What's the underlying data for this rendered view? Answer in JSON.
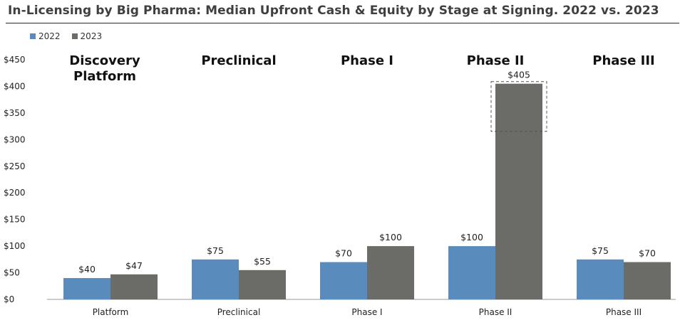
{
  "chart_data": {
    "type": "bar",
    "title": "In-Licensing by Big Pharma: Median Upfront Cash & Equity by Stage at Signing. 2022 vs. 2023",
    "categories": [
      "Platform",
      "Preclinical",
      "Phase I",
      "Phase II",
      "Phase III"
    ],
    "group_headings": [
      [
        "Discovery",
        "Platform"
      ],
      [
        "Preclinical"
      ],
      [
        "Phase I"
      ],
      [
        "Phase II"
      ],
      [
        "Phase III"
      ]
    ],
    "series": [
      {
        "name": "2022",
        "color": "#5a8bbd",
        "values": [
          40,
          75,
          70,
          100,
          75
        ],
        "labels": [
          "$40",
          "$75",
          "$70",
          "$100",
          "$75"
        ]
      },
      {
        "name": "2023",
        "color": "#6b6b68",
        "values": [
          47,
          55,
          100,
          405,
          70
        ],
        "labels": [
          "$47",
          "$55",
          "$100",
          "$405",
          "$70"
        ]
      }
    ],
    "ylim": [
      0,
      450
    ],
    "yticks": [
      0,
      50,
      100,
      150,
      200,
      250,
      300,
      350,
      400,
      450
    ],
    "ytick_labels": [
      "$0",
      "$50",
      "$100",
      "$150",
      "$200",
      "$250",
      "$300",
      "$350",
      "$400",
      "$450"
    ],
    "xlabel": "",
    "ylabel": "",
    "grid": false,
    "legend_position": "top-left",
    "highlight": {
      "category": "Phase II",
      "series": "2023",
      "style": "dashed box"
    }
  }
}
